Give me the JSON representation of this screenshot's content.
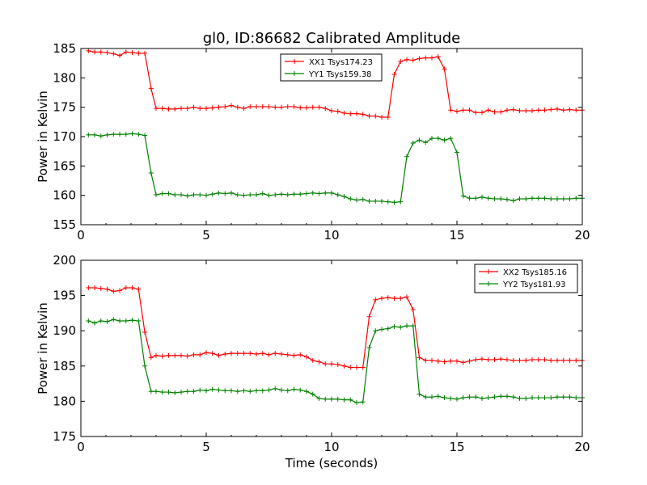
{
  "figure": {
    "title": "gl0, ID:86682 Calibrated Amplitude",
    "xlabel": "Time (seconds)"
  },
  "chart_data": [
    {
      "type": "line",
      "ylabel": "Power in Kelvin",
      "xlabel": "",
      "xlim": [
        0,
        20
      ],
      "ylim": [
        155,
        185
      ],
      "xticks": [
        "0",
        "5",
        "10",
        "15",
        "20"
      ],
      "yticks": [
        "155",
        "160",
        "165",
        "170",
        "175",
        "180",
        "185"
      ],
      "legend_position": "top-center",
      "grid": false,
      "x": [
        0.3,
        0.55,
        0.8,
        1.05,
        1.3,
        1.55,
        1.8,
        2.05,
        2.3,
        2.55,
        2.8,
        3.0,
        3.25,
        3.5,
        3.75,
        4.0,
        4.25,
        4.5,
        4.75,
        5.0,
        5.25,
        5.5,
        5.75,
        6.0,
        6.25,
        6.5,
        6.75,
        7.0,
        7.25,
        7.5,
        7.75,
        8.0,
        8.25,
        8.5,
        8.75,
        9.0,
        9.25,
        9.5,
        9.75,
        10.0,
        10.25,
        10.5,
        10.75,
        11.0,
        11.25,
        11.5,
        11.75,
        12.0,
        12.25,
        12.5,
        12.75,
        13.0,
        13.25,
        13.5,
        13.75,
        14.0,
        14.25,
        14.5,
        14.75,
        15.0,
        15.25,
        15.5,
        15.75,
        16.0,
        16.25,
        16.5,
        16.75,
        17.0,
        17.25,
        17.5,
        17.75,
        18.0,
        18.25,
        18.5,
        18.75,
        19.0,
        19.25,
        19.5,
        19.75,
        20.0
      ],
      "series": [
        {
          "name": "XX1 Tsys174.23",
          "color": "#ff0000",
          "values": [
            184.6,
            184.4,
            184.4,
            184.3,
            184.1,
            183.8,
            184.4,
            184.3,
            184.2,
            184.2,
            178.2,
            174.8,
            174.8,
            174.7,
            174.7,
            174.8,
            174.8,
            175.0,
            174.8,
            174.8,
            174.9,
            175.0,
            175.1,
            175.3,
            175.0,
            174.8,
            175.1,
            175.1,
            175.1,
            175.1,
            175.0,
            175.0,
            175.1,
            175.1,
            174.9,
            174.9,
            175.0,
            175.0,
            174.8,
            174.4,
            174.3,
            174.0,
            173.9,
            173.9,
            173.8,
            173.5,
            173.5,
            173.3,
            173.3,
            180.6,
            182.8,
            183.1,
            183.0,
            183.3,
            183.4,
            183.4,
            183.6,
            181.5,
            174.5,
            174.3,
            174.5,
            174.5,
            174.1,
            174.1,
            174.5,
            174.2,
            174.2,
            174.5,
            174.6,
            174.4,
            174.4,
            174.4,
            174.5,
            174.5,
            174.6,
            174.7,
            174.5,
            174.6,
            174.5,
            174.5
          ],
          "comment": ""
        },
        {
          "name": "YY1 Tsys159.38",
          "color": "#008000",
          "values": [
            170.3,
            170.3,
            170.1,
            170.3,
            170.4,
            170.4,
            170.4,
            170.5,
            170.4,
            170.2,
            163.8,
            160.1,
            160.3,
            160.3,
            160.1,
            160.1,
            159.9,
            160.1,
            160.1,
            160.0,
            160.2,
            160.4,
            160.3,
            160.4,
            160.1,
            160.0,
            160.1,
            160.1,
            160.3,
            160.0,
            160.1,
            160.2,
            160.1,
            160.2,
            160.2,
            160.3,
            160.4,
            160.3,
            160.4,
            160.4,
            160.1,
            159.8,
            159.4,
            159.2,
            159.3,
            159.0,
            159.0,
            159.0,
            158.9,
            158.8,
            158.9,
            166.6,
            168.9,
            169.4,
            169.0,
            169.7,
            169.7,
            169.4,
            169.7,
            167.3,
            159.9,
            159.5,
            159.5,
            159.7,
            159.5,
            159.4,
            159.4,
            159.3,
            159.1,
            159.4,
            159.4,
            159.5,
            159.5,
            159.5,
            159.4,
            159.4,
            159.4,
            159.4,
            159.5,
            159.5
          ],
          "comment": ""
        }
      ]
    },
    {
      "type": "line",
      "ylabel": "Power in Kelvin",
      "xlabel": "Time (seconds)",
      "xlim": [
        0,
        20
      ],
      "ylim": [
        175,
        200
      ],
      "xticks": [
        "0",
        "5",
        "10",
        "15",
        "20"
      ],
      "yticks": [
        "175",
        "180",
        "185",
        "190",
        "195",
        "200"
      ],
      "legend_position": "top-right",
      "grid": false,
      "x": [
        0.3,
        0.55,
        0.8,
        1.05,
        1.3,
        1.55,
        1.8,
        2.05,
        2.3,
        2.55,
        2.8,
        3.0,
        3.25,
        3.5,
        3.75,
        4.0,
        4.25,
        4.5,
        4.75,
        5.0,
        5.25,
        5.5,
        5.75,
        6.0,
        6.25,
        6.5,
        6.75,
        7.0,
        7.25,
        7.5,
        7.75,
        8.0,
        8.25,
        8.5,
        8.75,
        9.0,
        9.25,
        9.5,
        9.75,
        10.0,
        10.25,
        10.5,
        10.75,
        11.0,
        11.25,
        11.5,
        11.75,
        12.0,
        12.25,
        12.5,
        12.75,
        13.0,
        13.25,
        13.5,
        13.75,
        14.0,
        14.25,
        14.5,
        14.75,
        15.0,
        15.25,
        15.5,
        15.75,
        16.0,
        16.25,
        16.5,
        16.75,
        17.0,
        17.25,
        17.5,
        17.75,
        18.0,
        18.25,
        18.5,
        18.75,
        19.0,
        19.25,
        19.5,
        19.75,
        20.0
      ],
      "series": [
        {
          "name": "XX2 Tsys185.16",
          "color": "#ff0000",
          "values": [
            196.1,
            196.1,
            196.0,
            195.9,
            195.6,
            195.7,
            196.1,
            196.1,
            195.9,
            189.8,
            186.2,
            186.5,
            186.4,
            186.5,
            186.5,
            186.5,
            186.4,
            186.6,
            186.6,
            186.9,
            186.8,
            186.5,
            186.7,
            186.8,
            186.8,
            186.8,
            186.8,
            186.7,
            186.8,
            186.6,
            186.8,
            186.7,
            186.6,
            186.5,
            186.6,
            186.3,
            185.8,
            185.6,
            185.3,
            185.3,
            185.2,
            185.0,
            184.8,
            184.8,
            184.8,
            192.0,
            194.4,
            194.6,
            194.7,
            194.6,
            194.6,
            194.8,
            193.0,
            186.2,
            185.8,
            185.8,
            185.7,
            185.6,
            185.7,
            185.7,
            185.5,
            185.7,
            185.9,
            186.0,
            185.9,
            185.9,
            186.0,
            185.9,
            185.8,
            185.8,
            185.8,
            185.9,
            185.9,
            185.9,
            185.8,
            185.8,
            185.8,
            185.8,
            185.8,
            185.8
          ],
          "comment": ""
        },
        {
          "name": "YY2 Tsys181.93",
          "color": "#008000",
          "values": [
            191.4,
            191.1,
            191.4,
            191.3,
            191.6,
            191.4,
            191.4,
            191.5,
            191.4,
            185.0,
            181.4,
            181.4,
            181.3,
            181.3,
            181.2,
            181.3,
            181.4,
            181.4,
            181.6,
            181.5,
            181.7,
            181.6,
            181.5,
            181.5,
            181.4,
            181.5,
            181.4,
            181.5,
            181.5,
            181.6,
            181.8,
            181.6,
            181.5,
            181.7,
            181.6,
            181.4,
            181.0,
            180.4,
            180.3,
            180.3,
            180.3,
            180.2,
            180.2,
            179.8,
            179.9,
            187.6,
            190.0,
            190.2,
            190.3,
            190.6,
            190.5,
            190.7,
            190.7,
            181.0,
            180.6,
            180.6,
            180.7,
            180.5,
            180.4,
            180.3,
            180.5,
            180.6,
            180.6,
            180.4,
            180.5,
            180.6,
            180.7,
            180.7,
            180.6,
            180.4,
            180.4,
            180.5,
            180.5,
            180.5,
            180.5,
            180.6,
            180.6,
            180.6,
            180.5,
            180.5
          ],
          "comment": ""
        }
      ]
    }
  ]
}
